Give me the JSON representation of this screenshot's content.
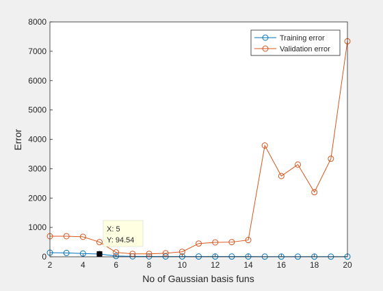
{
  "chart_data": {
    "type": "line",
    "xlabel": "No of Gaussian basis funs",
    "ylabel": "Error",
    "xlim": [
      2,
      20
    ],
    "ylim": [
      0,
      8000
    ],
    "grid": false,
    "legend_position": "top-right",
    "x": [
      2,
      3,
      4,
      5,
      6,
      7,
      8,
      9,
      10,
      11,
      12,
      13,
      14,
      15,
      16,
      17,
      18,
      19,
      20
    ],
    "x_ticks": [
      "2",
      "4",
      "6",
      "8",
      "10",
      "12",
      "14",
      "16",
      "18",
      "20"
    ],
    "y_ticks": [
      "0",
      "1000",
      "2000",
      "3000",
      "4000",
      "5000",
      "6000",
      "7000",
      "8000"
    ],
    "series": [
      {
        "name": "Training error",
        "color": "#0072bd",
        "marker": "circle",
        "values": [
          140,
          130,
          110,
          94.54,
          25,
          15,
          12,
          10,
          10,
          8,
          8,
          8,
          8,
          5,
          5,
          5,
          5,
          5,
          5
        ]
      },
      {
        "name": "Validation error",
        "color": "#d95319",
        "marker": "circle",
        "values": [
          700,
          700,
          680,
          500,
          150,
          100,
          100,
          120,
          170,
          450,
          490,
          500,
          570,
          3790,
          2750,
          3140,
          2200,
          3340,
          7340
        ]
      }
    ],
    "datatip": {
      "series": "Training error",
      "x": 5,
      "y": 94.54,
      "line_x": "X: 5",
      "line_y": "Y: 94.54"
    }
  }
}
